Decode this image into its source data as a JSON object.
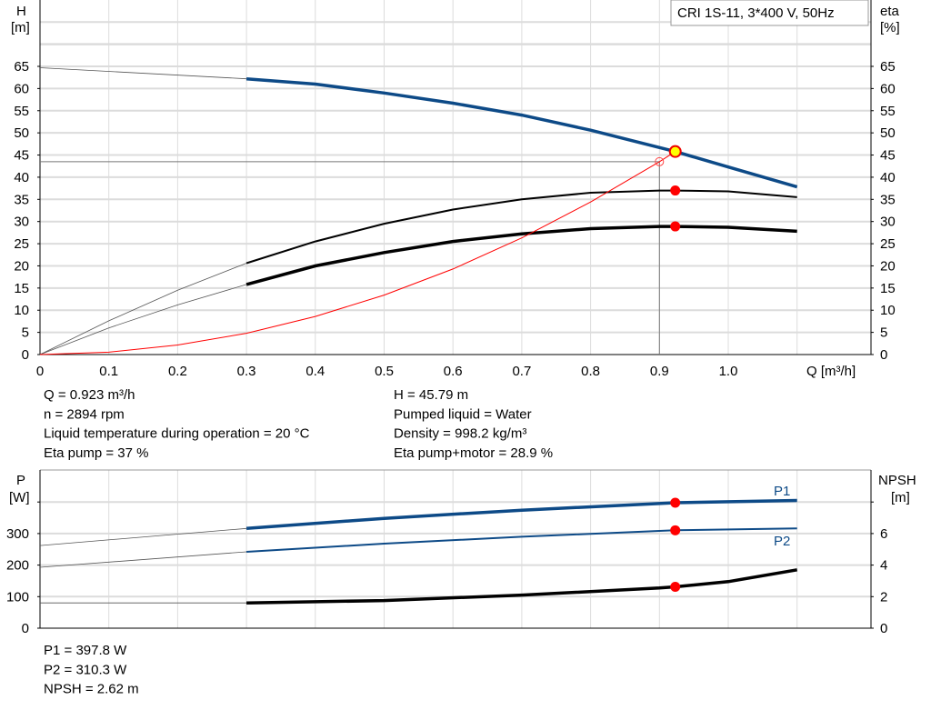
{
  "chart_data": [
    {
      "type": "line",
      "title_box": "CRI 1S-11, 3*400 V, 50Hz",
      "xlabel": "Q [m³/h]",
      "ylabel_left": [
        "H",
        "[m]"
      ],
      "ylabel_right": [
        "eta",
        "[%]"
      ],
      "xlim": [
        0,
        1.2
      ],
      "ylim": [
        0,
        75
      ],
      "x_ticks": [
        "0",
        "0.1",
        "0.2",
        "0.3",
        "0.4",
        "0.5",
        "0.6",
        "0.7",
        "0.8",
        "0.9",
        "1.0"
      ],
      "y_ticks": [
        "0",
        "5",
        "10",
        "15",
        "20",
        "25",
        "30",
        "35",
        "40",
        "45",
        "50",
        "55",
        "60",
        "65"
      ],
      "grid": true,
      "series": [
        {
          "key": "H",
          "color": "#0d4a87",
          "x": [
            0,
            0.3,
            0.4,
            0.5,
            0.6,
            0.7,
            0.8,
            0.923,
            1.0,
            1.1
          ],
          "y": [
            64.7,
            62.2,
            61.0,
            59.0,
            56.7,
            54.0,
            50.6,
            45.79,
            42.3,
            37.8
          ],
          "thin_until": 0.3
        },
        {
          "key": "eta_pump",
          "color": "#000000",
          "x": [
            0,
            0.1,
            0.2,
            0.3,
            0.4,
            0.5,
            0.6,
            0.7,
            0.8,
            0.9,
            0.923,
            1.0,
            1.1
          ],
          "y": [
            0,
            7.6,
            14.5,
            20.6,
            25.5,
            29.5,
            32.7,
            35.0,
            36.5,
            37.0,
            37.0,
            36.8,
            35.5
          ],
          "thin_until": 0.3
        },
        {
          "key": "eta_pump_motor",
          "color": "#000000",
          "x": [
            0,
            0.1,
            0.2,
            0.3,
            0.4,
            0.5,
            0.6,
            0.7,
            0.8,
            0.9,
            0.923,
            1.0,
            1.1
          ],
          "y": [
            0,
            6.0,
            11.2,
            15.8,
            20.0,
            23.0,
            25.5,
            27.2,
            28.4,
            28.9,
            28.9,
            28.7,
            27.8
          ],
          "thin_until": 0.3
        },
        {
          "key": "system_curve",
          "color": "#ff0000",
          "x": [
            0,
            0.1,
            0.2,
            0.3,
            0.4,
            0.5,
            0.6,
            0.7,
            0.8,
            0.9,
            0.923
          ],
          "y": [
            0,
            0.54,
            2.15,
            4.8,
            8.6,
            13.4,
            19.3,
            26.3,
            34.4,
            43.5,
            45.79
          ]
        }
      ],
      "operating_point": {
        "Q": 0.923,
        "H": 45.79,
        "eta_pump": 37,
        "eta_pump_motor": 28.9
      },
      "reference_point": {
        "Q": 0.9,
        "H": 43.5
      }
    },
    {
      "type": "line",
      "ylabel_left": [
        "P",
        "[W]"
      ],
      "ylabel_right": [
        "NPSH",
        "[m]"
      ],
      "ylim": [
        0,
        500
      ],
      "ylim_right": [
        0,
        10
      ],
      "y_ticks": [
        "0",
        "100",
        "200",
        "300"
      ],
      "y_ticks_right": [
        "0",
        "2",
        "4",
        "6"
      ],
      "grid": true,
      "series": [
        {
          "name": "P1",
          "color": "#0d4a87",
          "x": [
            0,
            0.3,
            0.5,
            0.7,
            0.923,
            1.1
          ],
          "y": [
            262,
            316,
            348,
            374,
            397.8,
            405
          ],
          "thin_until": 0.3
        },
        {
          "name": "P2",
          "color": "#0d4a87",
          "x": [
            0,
            0.3,
            0.5,
            0.7,
            0.923,
            1.1
          ],
          "y": [
            193,
            242,
            268,
            290,
            310.3,
            316
          ],
          "thin_until": 0.3
        },
        {
          "key": "NPSH",
          "color": "#000000",
          "axis": "right",
          "x": [
            0,
            0.3,
            0.5,
            0.7,
            0.9,
            0.923,
            1.0,
            1.1
          ],
          "y": [
            1.6,
            1.6,
            1.75,
            2.1,
            2.55,
            2.62,
            2.95,
            3.7
          ],
          "thin_until": 0.3
        }
      ]
    }
  ],
  "info_top": {
    "left": [
      "Q = 0.923 m³/h",
      "n = 2894 rpm",
      "Liquid temperature during operation = 20 °C",
      "Eta pump = 37 %"
    ],
    "right": [
      "H = 45.79 m",
      "Pumped liquid = Water",
      "Density = 998.2 kg/m³",
      "Eta pump+motor = 28.9 %"
    ]
  },
  "info_bottom": [
    "P1 = 397.8 W",
    "P2 = 310.3 W",
    "NPSH = 2.62 m"
  ]
}
